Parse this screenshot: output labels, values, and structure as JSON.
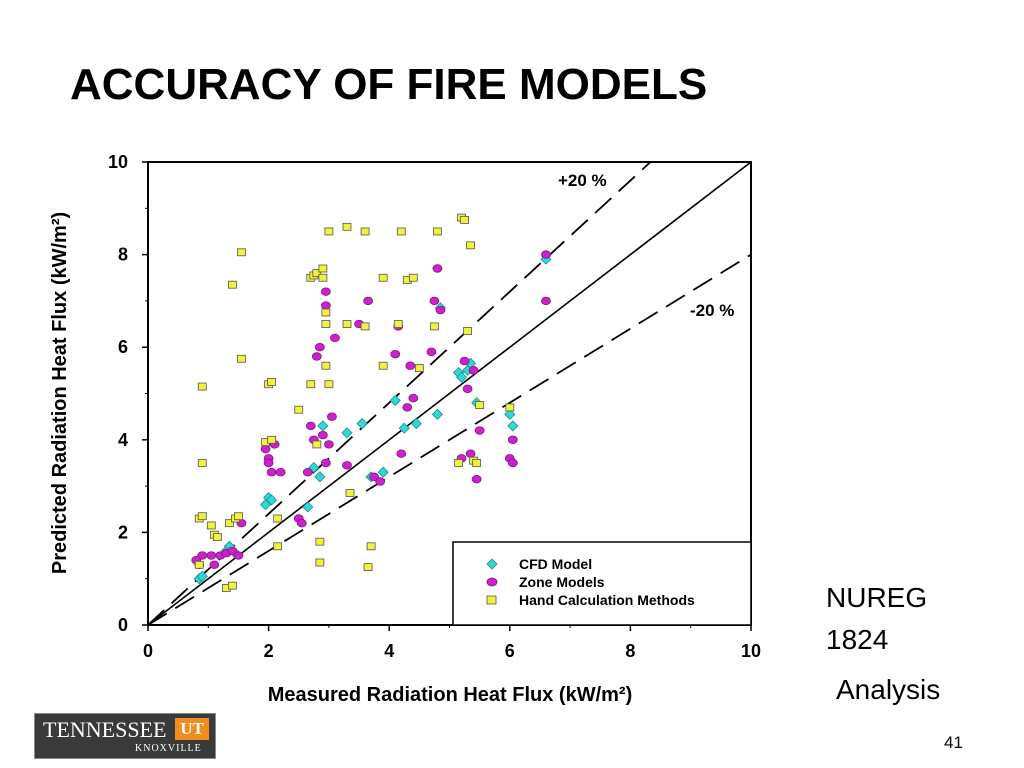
{
  "slide": {
    "title": "ACCURACY OF FIRE MODELS",
    "note_line1": "NUREG",
    "note_line2": "1824",
    "note_line3": "Analysis",
    "page_number": "41"
  },
  "logo": {
    "text": "TENNESSEE",
    "mark": "UT",
    "sub": "KNOXVILLE",
    "colors": {
      "background": "#3a3a3a",
      "accent": "#f08d1e"
    }
  },
  "chart_data": {
    "type": "scatter",
    "xlabel": "Measured Radiation Heat Flux (kW/m²)",
    "ylabel": "Predicted Radiation Heat Flux (kW/m²)",
    "xlim": [
      0,
      10
    ],
    "ylim": [
      0,
      10
    ],
    "x_ticks": [
      0,
      2,
      4,
      6,
      8,
      10
    ],
    "y_ticks": [
      0,
      2,
      4,
      6,
      8,
      10
    ],
    "grid": false,
    "legend_position": "bottom-right",
    "annotations": {
      "upper": "+20 %",
      "lower": "-20 %"
    },
    "reference_lines": [
      {
        "label": "1:1",
        "slope": 1.0,
        "style": "solid"
      },
      {
        "label": "+20 %",
        "slope": 1.2,
        "style": "dashed"
      },
      {
        "label": "-20 %",
        "slope": 0.8,
        "style": "dashed"
      }
    ],
    "series": [
      {
        "name": "CFD Model",
        "marker": "diamond",
        "color": "#33d6d6",
        "points": [
          [
            0.85,
            1.0
          ],
          [
            0.9,
            1.05
          ],
          [
            1.3,
            1.6
          ],
          [
            1.35,
            1.7
          ],
          [
            1.45,
            1.55
          ],
          [
            1.95,
            2.6
          ],
          [
            2.0,
            2.75
          ],
          [
            2.05,
            2.7
          ],
          [
            2.65,
            2.55
          ],
          [
            2.75,
            3.4
          ],
          [
            2.85,
            3.2
          ],
          [
            2.9,
            4.3
          ],
          [
            3.3,
            4.15
          ],
          [
            3.55,
            4.35
          ],
          [
            3.7,
            3.2
          ],
          [
            3.9,
            3.3
          ],
          [
            4.1,
            4.85
          ],
          [
            4.25,
            4.25
          ],
          [
            4.45,
            4.35
          ],
          [
            4.8,
            4.55
          ],
          [
            4.85,
            6.85
          ],
          [
            5.15,
            5.45
          ],
          [
            5.2,
            5.35
          ],
          [
            5.3,
            5.5
          ],
          [
            5.35,
            5.65
          ],
          [
            5.45,
            4.8
          ],
          [
            6.0,
            4.55
          ],
          [
            6.05,
            4.3
          ],
          [
            6.6,
            7.9
          ]
        ]
      },
      {
        "name": "Zone Models",
        "marker": "circle",
        "color": "#cc22cc",
        "points": [
          [
            0.8,
            1.4
          ],
          [
            0.85,
            1.3
          ],
          [
            0.9,
            1.5
          ],
          [
            1.05,
            1.5
          ],
          [
            1.1,
            1.3
          ],
          [
            1.2,
            1.5
          ],
          [
            1.3,
            1.55
          ],
          [
            1.4,
            1.6
          ],
          [
            1.5,
            1.5
          ],
          [
            1.55,
            2.2
          ],
          [
            1.95,
            3.8
          ],
          [
            2.0,
            3.6
          ],
          [
            2.0,
            3.5
          ],
          [
            2.05,
            3.3
          ],
          [
            2.1,
            3.9
          ],
          [
            2.2,
            3.3
          ],
          [
            2.5,
            2.3
          ],
          [
            2.55,
            2.2
          ],
          [
            2.65,
            3.3
          ],
          [
            2.7,
            4.3
          ],
          [
            2.75,
            4.0
          ],
          [
            2.8,
            5.8
          ],
          [
            2.85,
            6.0
          ],
          [
            2.9,
            4.1
          ],
          [
            2.95,
            3.5
          ],
          [
            2.95,
            6.9
          ],
          [
            2.95,
            7.2
          ],
          [
            3.0,
            3.9
          ],
          [
            3.05,
            4.5
          ],
          [
            3.1,
            6.2
          ],
          [
            3.3,
            3.45
          ],
          [
            3.5,
            6.5
          ],
          [
            3.65,
            7.0
          ],
          [
            3.75,
            3.2
          ],
          [
            3.85,
            3.1
          ],
          [
            4.1,
            5.85
          ],
          [
            4.15,
            6.45
          ],
          [
            4.2,
            3.7
          ],
          [
            4.3,
            4.7
          ],
          [
            4.35,
            5.6
          ],
          [
            4.4,
            4.9
          ],
          [
            4.7,
            5.9
          ],
          [
            4.75,
            7.0
          ],
          [
            4.8,
            7.7
          ],
          [
            4.85,
            6.8
          ],
          [
            5.2,
            3.6
          ],
          [
            5.25,
            5.7
          ],
          [
            5.3,
            5.1
          ],
          [
            5.35,
            3.7
          ],
          [
            5.4,
            5.5
          ],
          [
            5.45,
            3.15
          ],
          [
            5.5,
            4.2
          ],
          [
            6.0,
            3.6
          ],
          [
            6.05,
            3.5
          ],
          [
            6.05,
            4.0
          ],
          [
            6.6,
            7.0
          ],
          [
            6.6,
            8.0
          ]
        ]
      },
      {
        "name": "Hand Calculation Methods",
        "marker": "square",
        "color": "#f2f23a",
        "points": [
          [
            0.85,
            2.3
          ],
          [
            0.85,
            1.3
          ],
          [
            0.9,
            2.35
          ],
          [
            0.9,
            3.5
          ],
          [
            0.9,
            5.15
          ],
          [
            1.05,
            2.15
          ],
          [
            1.1,
            1.95
          ],
          [
            1.15,
            1.9
          ],
          [
            1.3,
            0.8
          ],
          [
            1.35,
            2.2
          ],
          [
            1.4,
            0.85
          ],
          [
            1.4,
            7.35
          ],
          [
            1.45,
            2.3
          ],
          [
            1.5,
            2.35
          ],
          [
            1.55,
            5.75
          ],
          [
            1.55,
            8.05
          ],
          [
            1.95,
            3.95
          ],
          [
            2.0,
            5.2
          ],
          [
            2.05,
            4.0
          ],
          [
            2.05,
            5.25
          ],
          [
            2.15,
            2.3
          ],
          [
            2.15,
            1.7
          ],
          [
            2.5,
            4.65
          ],
          [
            2.7,
            5.2
          ],
          [
            2.7,
            7.5
          ],
          [
            2.75,
            7.55
          ],
          [
            2.8,
            7.6
          ],
          [
            2.8,
            3.9
          ],
          [
            2.85,
            1.8
          ],
          [
            2.85,
            1.35
          ],
          [
            2.9,
            7.7
          ],
          [
            2.9,
            7.5
          ],
          [
            2.95,
            5.6
          ],
          [
            2.95,
            6.5
          ],
          [
            2.95,
            6.75
          ],
          [
            3.0,
            5.2
          ],
          [
            3.0,
            8.5
          ],
          [
            3.3,
            6.5
          ],
          [
            3.3,
            8.6
          ],
          [
            3.35,
            2.85
          ],
          [
            3.6,
            6.45
          ],
          [
            3.6,
            8.5
          ],
          [
            3.65,
            1.25
          ],
          [
            3.7,
            1.7
          ],
          [
            3.9,
            7.5
          ],
          [
            3.9,
            5.6
          ],
          [
            4.15,
            6.5
          ],
          [
            4.2,
            8.5
          ],
          [
            4.3,
            7.45
          ],
          [
            4.4,
            7.5
          ],
          [
            4.5,
            5.55
          ],
          [
            4.75,
            6.45
          ],
          [
            4.8,
            8.5
          ],
          [
            5.15,
            3.5
          ],
          [
            5.2,
            8.8
          ],
          [
            5.25,
            8.75
          ],
          [
            5.3,
            6.35
          ],
          [
            5.35,
            8.2
          ],
          [
            5.4,
            3.55
          ],
          [
            5.45,
            3.5
          ],
          [
            5.5,
            4.75
          ],
          [
            6.0,
            4.7
          ]
        ]
      }
    ]
  }
}
